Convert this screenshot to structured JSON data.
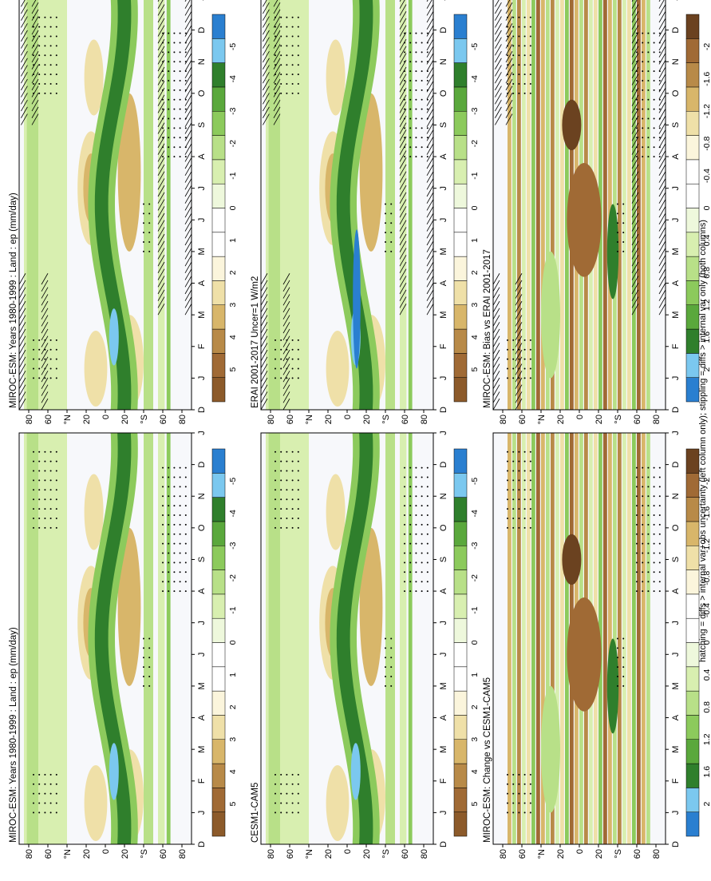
{
  "figure": {
    "footnote": "hatching = diffs > internal var+obs uncertainty (left column only); stippling = diffs > internal var only (both columns)",
    "months": [
      "D",
      "J",
      "F",
      "M",
      "A",
      "M",
      "J",
      "J",
      "A",
      "S",
      "O",
      "N",
      "D",
      "J"
    ],
    "lat_ticks": [
      "80",
      "60",
      "°N",
      "20",
      "0",
      "20",
      "°S",
      "60",
      "80"
    ],
    "palettes": {
      "main": [
        "#8c5a2a",
        "#a06a35",
        "#b88a48",
        "#d8b66a",
        "#efe0a8",
        "#fbf5dc",
        "#ffffff",
        "#ffffff",
        "#eef8dc",
        "#d8efb0",
        "#b8e088",
        "#8cca5c",
        "#5aa83c",
        "#2f7f2c",
        "#7bc8ef",
        "#2a7fd0"
      ],
      "diff": [
        "#2a7fd0",
        "#7bc8ef",
        "#2f7f2c",
        "#5aa83c",
        "#8cca5c",
        "#b8e088",
        "#d8efb0",
        "#eef8dc",
        "#ffffff",
        "#ffffff",
        "#fbf5dc",
        "#efe0a8",
        "#d8b66a",
        "#b88a48",
        "#a06a35",
        "#6b4220"
      ]
    }
  },
  "chart_data": [
    {
      "type": "heatmap",
      "panel": "top-left",
      "title": "MIROC-ESM: Years 1980-1999 : Land : ep (mm/day)",
      "x": "month (Dec to Jan)",
      "y": "latitude 90S to 90N",
      "colorbar_ticks": [
        "5",
        "4",
        "3",
        "2",
        "1",
        "0",
        "-1",
        "-2",
        "-3",
        "-4",
        "-5"
      ],
      "colorbar_range": [
        5,
        -5
      ],
      "hatching": true,
      "stippling": true
    },
    {
      "type": "heatmap",
      "panel": "top-right",
      "title": "MIROC-ESM: Years 1980-1999 : Land : ep (mm/day)",
      "colorbar_ticks": [
        "5",
        "4",
        "3",
        "2",
        "1",
        "0",
        "-1",
        "-2",
        "-3",
        "-4",
        "-5"
      ],
      "colorbar_range": [
        5,
        -5
      ],
      "hatching": false,
      "stippling": true
    },
    {
      "type": "heatmap",
      "panel": "middle-left",
      "title": "ERAI 2001-2017 Uncer=1 W/m2",
      "colorbar_ticks": [
        "5",
        "4",
        "3",
        "2",
        "1",
        "0",
        "-1",
        "-2",
        "-3",
        "-4",
        "-5"
      ],
      "colorbar_range": [
        5,
        -5
      ],
      "hatching": true,
      "stippling": true
    },
    {
      "type": "heatmap",
      "panel": "middle-right",
      "title": "CESM1-CAM5",
      "colorbar_ticks": [
        "5",
        "4",
        "3",
        "2",
        "1",
        "0",
        "-1",
        "-2",
        "-3",
        "-4",
        "-5"
      ],
      "colorbar_range": [
        5,
        -5
      ],
      "hatching": false,
      "stippling": true
    },
    {
      "type": "heatmap",
      "panel": "bottom-left",
      "title": "MIROC-ESM: Bias vs ERAI 2001-2017",
      "colorbar_ticks": [
        "2",
        "1.6",
        "1.2",
        "0.8",
        "0.4",
        "0",
        "-0.4",
        "-0.8",
        "-1.2",
        "-1.6",
        "-2"
      ],
      "colorbar_range": [
        2,
        -2
      ],
      "hatching": true,
      "stippling": true
    },
    {
      "type": "heatmap",
      "panel": "bottom-right",
      "title": "MIROC-ESM: Change vs CESM1-CAM5",
      "colorbar_ticks": [
        "2",
        "1.6",
        "1.2",
        "0.8",
        "0.4",
        "0",
        "-0.4",
        "-0.8",
        "-1.2",
        "-1.6",
        "-2"
      ],
      "colorbar_range": [
        2,
        -2
      ],
      "hatching": false,
      "stippling": true
    }
  ]
}
